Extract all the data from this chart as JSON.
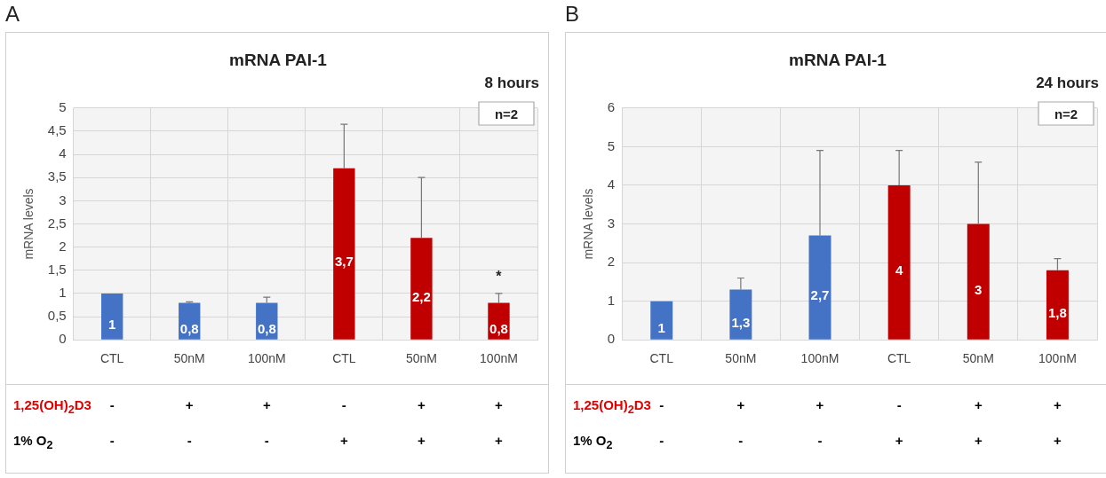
{
  "chart_data": [
    {
      "type": "bar",
      "subtitle": "A",
      "title": "mRNA PAI-1",
      "ylabel": "mRNA levels",
      "categories": [
        "CTL",
        "50nM",
        "100nM",
        "CTL",
        "50nM",
        "100nM"
      ],
      "values": [
        1,
        0.8,
        0.8,
        3.7,
        2.2,
        0.8
      ],
      "colors": [
        "#4472c4",
        "#4472c4",
        "#4472c4",
        "#c00000",
        "#c00000",
        "#c00000"
      ],
      "errors": [
        null,
        [
          0.8,
          0.82
        ],
        [
          0.8,
          0.92
        ],
        [
          3.7,
          4.65
        ],
        [
          2.2,
          3.5
        ],
        [
          0.8,
          1
        ]
      ],
      "value_labels": [
        "1",
        "0,8",
        "0,8",
        "3,7",
        "2,2",
        "0,8"
      ],
      "ylim": [
        0,
        5
      ],
      "yticks": [
        0,
        {
          "value": 0.5,
          "label": "0,5"
        },
        1,
        {
          "value": 1.5,
          "label": "1,5"
        },
        2,
        {
          "value": 2.5,
          "label": "2,5"
        },
        3,
        {
          "value": 3.5,
          "label": "3,5"
        },
        4,
        {
          "value": 4.5,
          "label": "4,5"
        },
        5
      ],
      "grid": true,
      "legend": false,
      "annotations": [
        "8 hours",
        "n=2",
        "1,25(OH)$_{2}$D3",
        "- + + - + +",
        "1% O$_{2}$",
        "- - - + + +",
        "*"
      ]
    },
    {
      "type": "bar",
      "subtitle": "B",
      "title": "mRNA PAI-1",
      "ylabel": "mRNA levels",
      "categories": [
        "CTL",
        "50nM",
        "100nM",
        "CTL",
        "50nM",
        "100nM"
      ],
      "values": [
        1,
        1.3,
        2.7,
        4,
        3,
        1.8
      ],
      "colors": [
        "#4472c4",
        "#4472c4",
        "#4472c4",
        "#c00000",
        "#c00000",
        "#c00000"
      ],
      "errors": [
        null,
        [
          1.3,
          1.6
        ],
        [
          2.7,
          4.9
        ],
        [
          4,
          4.9
        ],
        [
          3,
          4.6
        ],
        [
          1.8,
          2.1
        ]
      ],
      "value_labels": [
        "1",
        "1,3",
        "2,7",
        "4",
        "3",
        "1,8"
      ],
      "ylim": [
        0,
        6
      ],
      "yticks": [
        0,
        1,
        2,
        3,
        4,
        5,
        6
      ],
      "grid": true,
      "legend": false,
      "annotations": [
        "24 hours",
        "n=2",
        "1,25(OH)$_{2}$D3",
        "- + + - + +",
        "1% O$_{2}$",
        "- - - + + +"
      ]
    }
  ]
}
